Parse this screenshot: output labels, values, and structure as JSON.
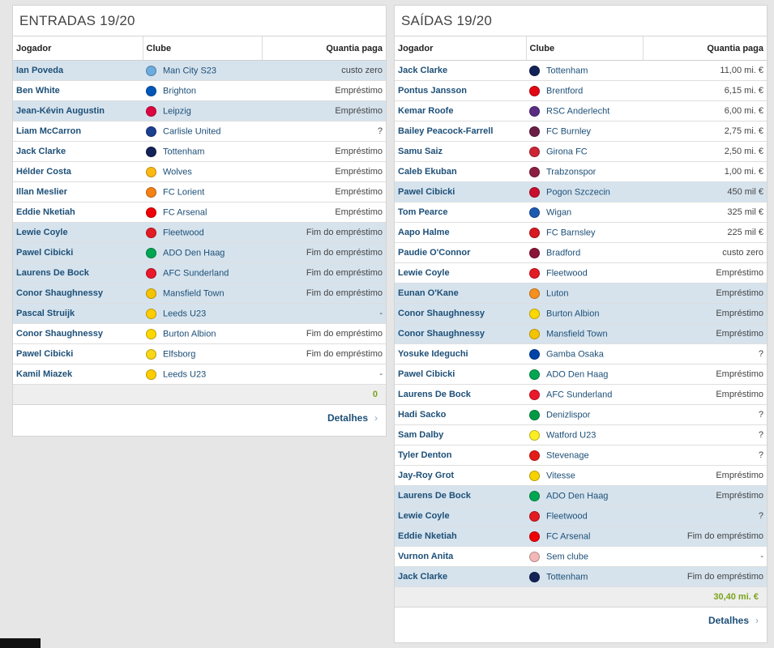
{
  "entradas": {
    "title": "ENTRADAS 19/20",
    "headers": {
      "player": "Jogador",
      "club": "Clube",
      "fee": "Quantia paga"
    },
    "rows": [
      {
        "player": "Ian Poveda",
        "club": "Man City S23",
        "fee": "custo zero",
        "hl": true,
        "crest": "#6cabdd"
      },
      {
        "player": "Ben White",
        "club": "Brighton",
        "fee": "Empréstimo",
        "hl": false,
        "crest": "#0057b8"
      },
      {
        "player": "Jean-Kévin Augustin",
        "club": "Leipzig",
        "fee": "Empréstimo",
        "hl": true,
        "crest": "#dd0741"
      },
      {
        "player": "Liam McCarron",
        "club": "Carlisle United",
        "fee": "?",
        "hl": false,
        "crest": "#1a3f8f"
      },
      {
        "player": "Jack Clarke",
        "club": "Tottenham",
        "fee": "Empréstimo",
        "hl": false,
        "crest": "#132257"
      },
      {
        "player": "Hélder Costa",
        "club": "Wolves",
        "fee": "Empréstimo",
        "hl": false,
        "crest": "#fdb913"
      },
      {
        "player": "Illan Meslier",
        "club": "FC Lorient",
        "fee": "Empréstimo",
        "hl": false,
        "crest": "#f58113"
      },
      {
        "player": "Eddie Nketiah",
        "club": "FC Arsenal",
        "fee": "Empréstimo",
        "hl": false,
        "crest": "#ef0107"
      },
      {
        "player": "Lewie Coyle",
        "club": "Fleetwood",
        "fee": "Fim do empréstimo",
        "hl": true,
        "crest": "#e31b23"
      },
      {
        "player": "Pawel Cibicki",
        "club": "ADO Den Haag",
        "fee": "Fim do empréstimo",
        "hl": true,
        "crest": "#00a651"
      },
      {
        "player": "Laurens De Bock",
        "club": "AFC Sunderland",
        "fee": "Fim do empréstimo",
        "hl": true,
        "crest": "#eb172b"
      },
      {
        "player": "Conor Shaughnessy",
        "club": "Mansfield Town",
        "fee": "Fim do empréstimo",
        "hl": true,
        "crest": "#f5c400"
      },
      {
        "player": "Pascal Struijk",
        "club": "Leeds U23",
        "fee": "-",
        "hl": true,
        "crest": "#ffcd00"
      },
      {
        "player": "Conor Shaughnessy",
        "club": "Burton Albion",
        "fee": "Fim do empréstimo",
        "hl": false,
        "crest": "#fdd800"
      },
      {
        "player": "Pawel Cibicki",
        "club": "Elfsborg",
        "fee": "Fim do empréstimo",
        "hl": false,
        "crest": "#f9d616"
      },
      {
        "player": "Kamil Miazek",
        "club": "Leeds U23",
        "fee": "-",
        "hl": false,
        "crest": "#ffcd00"
      }
    ],
    "total": "0",
    "details_label": "Detalhes"
  },
  "saidas": {
    "title": "SAÍDAS 19/20",
    "headers": {
      "player": "Jogador",
      "club": "Clube",
      "fee": "Quantia paga"
    },
    "rows": [
      {
        "player": "Jack Clarke",
        "club": "Tottenham",
        "fee": "11,00 mi. €",
        "hl": false,
        "crest": "#132257"
      },
      {
        "player": "Pontus Jansson",
        "club": "Brentford",
        "fee": "6,15 mi. €",
        "hl": false,
        "crest": "#e30613"
      },
      {
        "player": "Kemar Roofe",
        "club": "RSC Anderlecht",
        "fee": "6,00 mi. €",
        "hl": false,
        "crest": "#5a2d82"
      },
      {
        "player": "Bailey Peacock-Farrell",
        "club": "FC Burnley",
        "fee": "2,75 mi. €",
        "hl": false,
        "crest": "#6c1d45"
      },
      {
        "player": "Samu Saiz",
        "club": "Girona FC",
        "fee": "2,50 mi. €",
        "hl": false,
        "crest": "#cd2534"
      },
      {
        "player": "Caleb Ekuban",
        "club": "Trabzonspor",
        "fee": "1,00 mi. €",
        "hl": false,
        "crest": "#8b1f41"
      },
      {
        "player": "Pawel Cibicki",
        "club": "Pogon Szczecin",
        "fee": "450 mil €",
        "hl": true,
        "crest": "#c8102e"
      },
      {
        "player": "Tom Pearce",
        "club": "Wigan",
        "fee": "325 mil €",
        "hl": false,
        "crest": "#1d59af"
      },
      {
        "player": "Aapo Halme",
        "club": "FC Barnsley",
        "fee": "225 mil €",
        "hl": false,
        "crest": "#d71920"
      },
      {
        "player": "Paudie O'Connor",
        "club": "Bradford",
        "fee": "custo zero",
        "hl": false,
        "crest": "#8b1538"
      },
      {
        "player": "Lewie Coyle",
        "club": "Fleetwood",
        "fee": "Empréstimo",
        "hl": false,
        "crest": "#e31b23"
      },
      {
        "player": "Eunan O'Kane",
        "club": "Luton",
        "fee": "Empréstimo",
        "hl": true,
        "crest": "#f78f1e"
      },
      {
        "player": "Conor Shaughnessy",
        "club": "Burton Albion",
        "fee": "Empréstimo",
        "hl": true,
        "crest": "#fdd800"
      },
      {
        "player": "Conor Shaughnessy",
        "club": "Mansfield Town",
        "fee": "Empréstimo",
        "hl": true,
        "crest": "#f5c400"
      },
      {
        "player": "Yosuke Ideguchi",
        "club": "Gamba Osaka",
        "fee": "?",
        "hl": false,
        "crest": "#0043a8"
      },
      {
        "player": "Pawel Cibicki",
        "club": "ADO Den Haag",
        "fee": "Empréstimo",
        "hl": false,
        "crest": "#00a651"
      },
      {
        "player": "Laurens De Bock",
        "club": "AFC Sunderland",
        "fee": "Empréstimo",
        "hl": false,
        "crest": "#eb172b"
      },
      {
        "player": "Hadi Sacko",
        "club": "Denizlispor",
        "fee": "?",
        "hl": false,
        "crest": "#009a44"
      },
      {
        "player": "Sam Dalby",
        "club": "Watford U23",
        "fee": "?",
        "hl": false,
        "crest": "#fbee23"
      },
      {
        "player": "Tyler Denton",
        "club": "Stevenage",
        "fee": "?",
        "hl": false,
        "crest": "#e41b17"
      },
      {
        "player": "Jay-Roy Grot",
        "club": "Vitesse",
        "fee": "Empréstimo",
        "hl": false,
        "crest": "#f6d300"
      },
      {
        "player": "Laurens De Bock",
        "club": "ADO Den Haag",
        "fee": "Empréstimo",
        "hl": true,
        "crest": "#00a651"
      },
      {
        "player": "Lewie Coyle",
        "club": "Fleetwood",
        "fee": "?",
        "hl": true,
        "crest": "#e31b23"
      },
      {
        "player": "Eddie Nketiah",
        "club": "FC Arsenal",
        "fee": "Fim do empréstimo",
        "hl": true,
        "crest": "#ef0107"
      },
      {
        "player": "Vurnon Anita",
        "club": "Sem clube",
        "fee": "-",
        "hl": false,
        "crest": "#f2b8b8"
      },
      {
        "player": "Jack Clarke",
        "club": "Tottenham",
        "fee": "Fim do empréstimo",
        "hl": true,
        "crest": "#132257"
      }
    ],
    "total": "30,40 mi. €",
    "details_label": "Detalhes"
  },
  "icons": {
    "club_crest": "club-crest-icon",
    "details_chevron": "chevron-right-icon"
  }
}
